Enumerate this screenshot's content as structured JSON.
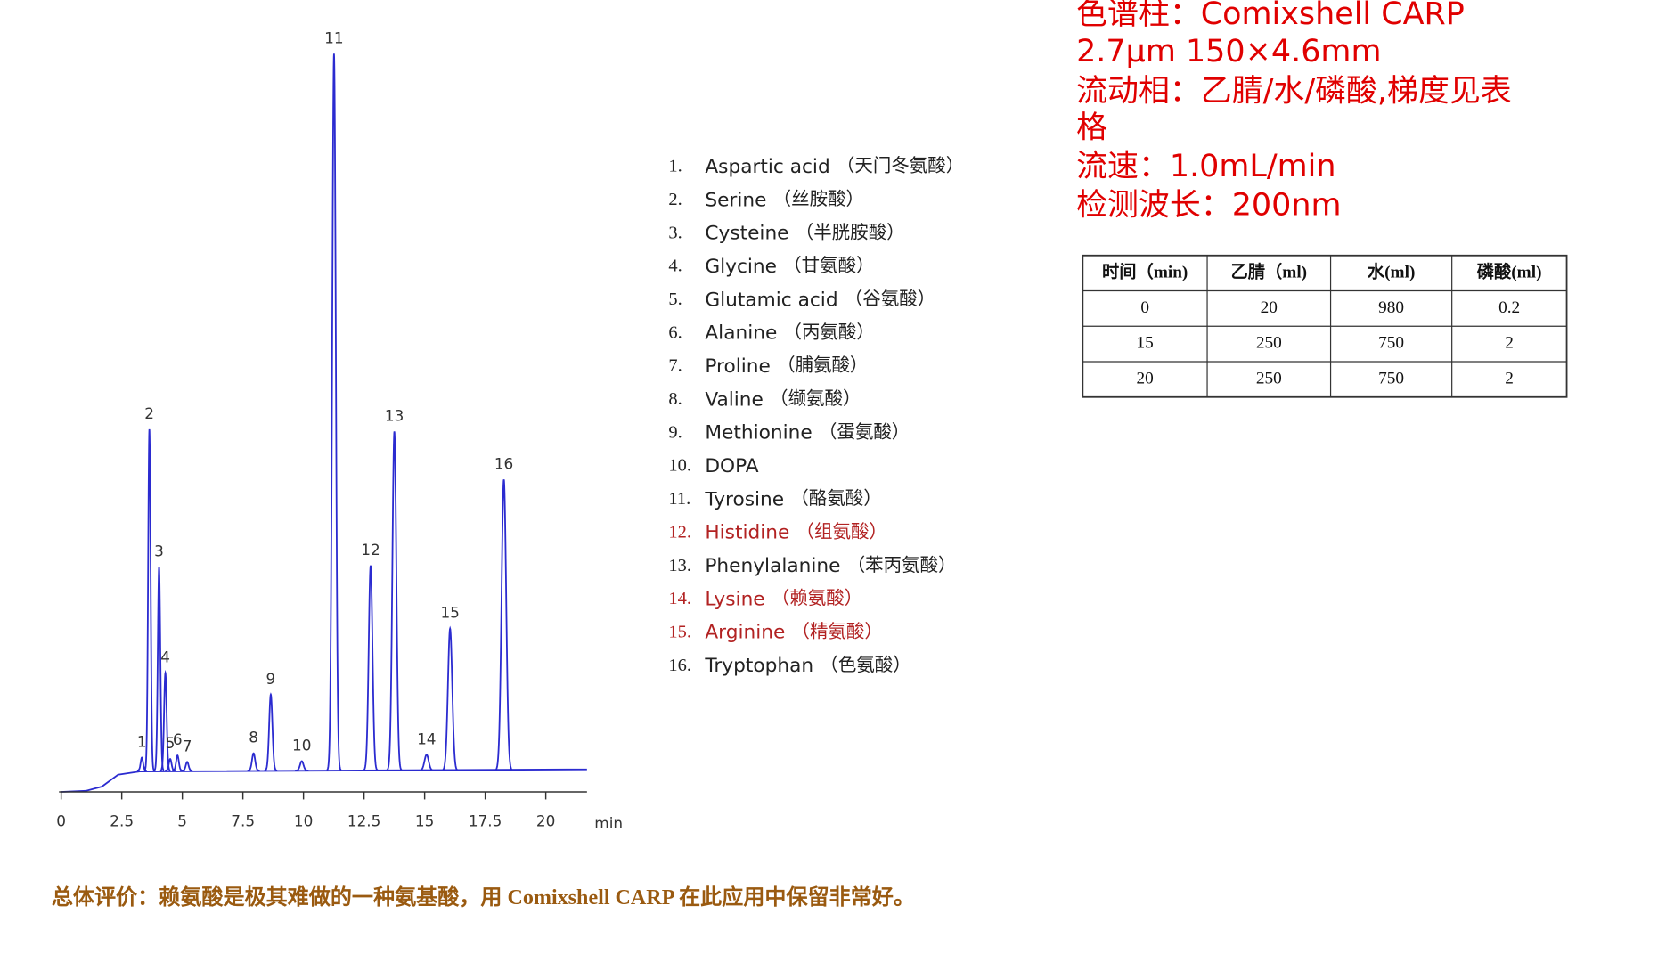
{
  "chart_data": {
    "type": "chromatogram",
    "x_unit": "min",
    "xlim": [
      0,
      21.7
    ],
    "xticks": [
      0,
      2.5,
      5,
      7.5,
      10,
      12.5,
      15,
      17.5,
      20
    ],
    "ylim": [
      0,
      100
    ],
    "color": "#2b2bd0",
    "peaks": [
      {
        "label": "1",
        "time": 3.33,
        "height": 1.8
      },
      {
        "label": "2",
        "time": 3.64,
        "height": 47.6
      },
      {
        "label": "3",
        "time": 4.04,
        "height": 28.4
      },
      {
        "label": "4",
        "time": 4.3,
        "height": 13.6
      },
      {
        "label": "5",
        "time": 4.5,
        "height": 1.6
      },
      {
        "label": "6",
        "time": 4.8,
        "height": 2.1
      },
      {
        "label": "7",
        "time": 5.2,
        "height": 1.2
      },
      {
        "label": "8",
        "time": 7.94,
        "height": 2.4
      },
      {
        "label": "9",
        "time": 8.65,
        "height": 10.6
      },
      {
        "label": "10",
        "time": 9.93,
        "height": 1.3
      },
      {
        "label": "11",
        "time": 11.26,
        "height": 100
      },
      {
        "label": "12",
        "time": 12.77,
        "height": 28.6
      },
      {
        "label": "13",
        "time": 13.75,
        "height": 47.3
      },
      {
        "label": "14",
        "time": 15.08,
        "height": 2.2
      },
      {
        "label": "15",
        "time": 16.05,
        "height": 19.8
      },
      {
        "label": "16",
        "time": 18.27,
        "height": 40.6
      }
    ]
  },
  "compounds": [
    {
      "number": "1.",
      "name": "Aspartic acid",
      "cn": "（天门冬氨酸）",
      "color": "#222222"
    },
    {
      "number": "2.",
      "name": "Serine",
      "cn": "（丝胺酸）",
      "color": "#222222"
    },
    {
      "number": "3.",
      "name": "Cysteine",
      "cn": "（半胱胺酸）",
      "color": "#222222"
    },
    {
      "number": "4.",
      "name": "Glycine",
      "cn": "（甘氨酸）",
      "color": "#222222"
    },
    {
      "number": "5.",
      "name": "Glutamic acid",
      "cn": "（谷氨酸）",
      "color": "#222222"
    },
    {
      "number": "6.",
      "name": "Alanine",
      "cn": "（丙氨酸）",
      "color": "#222222"
    },
    {
      "number": "7.",
      "name": "Proline",
      "cn": "（脯氨酸）",
      "color": "#222222"
    },
    {
      "number": "8.",
      "name": "Valine",
      "cn": "（缬氨酸）",
      "color": "#222222"
    },
    {
      "number": "9.",
      "name": "Methionine",
      "cn": "（蛋氨酸）",
      "color": "#222222"
    },
    {
      "number": "10.",
      "name": "DOPA",
      "color": "#222222"
    },
    {
      "number": "11.",
      "name": "Tyrosine",
      "cn": "（酪氨酸）",
      "color": "#222222"
    },
    {
      "number": "12.",
      "name": "Histidine",
      "cn": "（组氨酸）",
      "color": "#b22222"
    },
    {
      "number": "13.",
      "name": "Phenylalanine",
      "cn": "（苯丙氨酸）",
      "color": "#222222"
    },
    {
      "number": "14.",
      "name": "Lysine",
      "cn": "（赖氨酸）",
      "color": "#b22222"
    },
    {
      "number": "15.",
      "name": "Arginine",
      "cn": "（精氨酸）",
      "color": "#b22222"
    },
    {
      "number": "16.",
      "name": "Tryptophan",
      "cn": "（色氨酸）",
      "color": "#222222"
    }
  ],
  "conditions": [
    "色谱柱：Comixshell CARP",
    "2.7μm 150×4.6mm",
    "流动相：乙腈/水/磷酸,梯度见表",
    "格",
    "流速：1.0mL/min",
    "检测波长：200nm"
  ],
  "table": {
    "header": [
      "时间（min)",
      "乙腈（ml)",
      "水(ml)",
      "磷酸(ml)"
    ],
    "rows": [
      [
        0,
        20,
        980,
        0.2
      ],
      [
        15,
        250,
        750,
        2
      ],
      [
        20,
        250,
        750,
        2
      ]
    ]
  },
  "conclusion": "总体评价：赖氨酸是极其难做的一种氨基酸，用 Comixshell CARP 在此应用中保留非常好。"
}
